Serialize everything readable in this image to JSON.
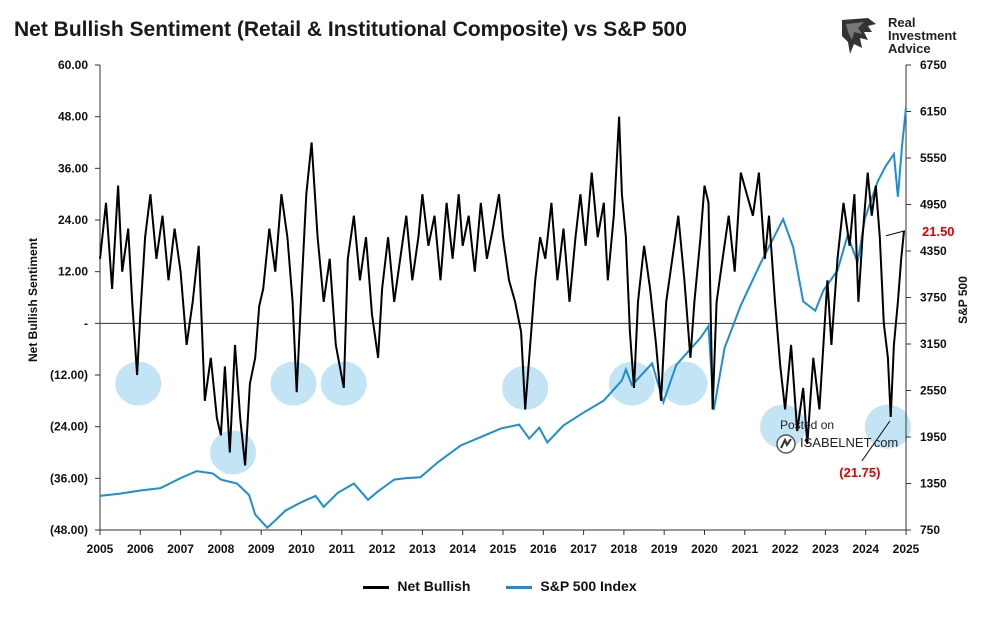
{
  "title": "Net Bullish Sentiment (Retail & Institutional Composite) vs S&P 500",
  "logo": {
    "line1": "Real",
    "line2": "Investment",
    "line3": "Advice"
  },
  "watermark": {
    "posted": "Posted on",
    "site": "ISABELNET.com"
  },
  "colors": {
    "net_bullish": "#000000",
    "sp500": "#1a8fd6",
    "highlight": "#b9dff3",
    "annotation": "#e00000"
  },
  "chart_data": {
    "type": "line",
    "title": "Net Bullish Sentiment (Retail & Institutional Composite) vs S&P 500",
    "x_ticks": [
      "2005",
      "2006",
      "2007",
      "2008",
      "2009",
      "2010",
      "2011",
      "2012",
      "2013",
      "2014",
      "2015",
      "2016",
      "2017",
      "2018",
      "2019",
      "2020",
      "2021",
      "2022",
      "2023",
      "2024",
      "2025"
    ],
    "xlim": [
      2005,
      2025
    ],
    "y_left": {
      "label": "Net Bullish Sentiment",
      "ticks": [
        "60.00",
        "48.00",
        "36.00",
        "24.00",
        "12.00",
        "-",
        "(12.00)",
        "(24.00)",
        "(36.00)",
        "(48.00)"
      ],
      "range": [
        -48,
        60
      ]
    },
    "y_right": {
      "label": "S&P 500",
      "ticks": [
        "6750",
        "6150",
        "5550",
        "4950",
        "4350",
        "3750",
        "3150",
        "2550",
        "1950",
        "1350",
        "750"
      ],
      "range": [
        750,
        6750
      ]
    },
    "series": [
      {
        "name": "Net Bullish",
        "axis": "left",
        "points": [
          [
            2005.0,
            15
          ],
          [
            2005.15,
            28
          ],
          [
            2005.3,
            8
          ],
          [
            2005.45,
            32
          ],
          [
            2005.55,
            12
          ],
          [
            2005.7,
            22
          ],
          [
            2005.8,
            5
          ],
          [
            2005.92,
            -12
          ],
          [
            2006.0,
            2
          ],
          [
            2006.12,
            20
          ],
          [
            2006.25,
            30
          ],
          [
            2006.4,
            15
          ],
          [
            2006.55,
            25
          ],
          [
            2006.7,
            10
          ],
          [
            2006.85,
            22
          ],
          [
            2007.0,
            12
          ],
          [
            2007.15,
            -5
          ],
          [
            2007.3,
            5
          ],
          [
            2007.45,
            18
          ],
          [
            2007.6,
            -18
          ],
          [
            2007.75,
            -8
          ],
          [
            2007.9,
            -22
          ],
          [
            2008.0,
            -26
          ],
          [
            2008.1,
            -10
          ],
          [
            2008.22,
            -30
          ],
          [
            2008.35,
            -5
          ],
          [
            2008.48,
            -22
          ],
          [
            2008.6,
            -33
          ],
          [
            2008.72,
            -14
          ],
          [
            2008.85,
            -8
          ],
          [
            2008.95,
            4
          ],
          [
            2009.05,
            8
          ],
          [
            2009.2,
            22
          ],
          [
            2009.35,
            12
          ],
          [
            2009.5,
            30
          ],
          [
            2009.65,
            20
          ],
          [
            2009.78,
            5
          ],
          [
            2009.88,
            -16
          ],
          [
            2010.0,
            8
          ],
          [
            2010.12,
            30
          ],
          [
            2010.25,
            42
          ],
          [
            2010.4,
            20
          ],
          [
            2010.55,
            5
          ],
          [
            2010.7,
            15
          ],
          [
            2010.85,
            -5
          ],
          [
            2010.95,
            -10
          ],
          [
            2011.05,
            -15
          ],
          [
            2011.15,
            15
          ],
          [
            2011.3,
            25
          ],
          [
            2011.45,
            10
          ],
          [
            2011.6,
            20
          ],
          [
            2011.75,
            2
          ],
          [
            2011.9,
            -8
          ],
          [
            2012.0,
            8
          ],
          [
            2012.15,
            20
          ],
          [
            2012.3,
            5
          ],
          [
            2012.45,
            15
          ],
          [
            2012.6,
            25
          ],
          [
            2012.75,
            10
          ],
          [
            2012.9,
            20
          ],
          [
            2013.0,
            30
          ],
          [
            2013.15,
            18
          ],
          [
            2013.3,
            25
          ],
          [
            2013.45,
            10
          ],
          [
            2013.6,
            28
          ],
          [
            2013.75,
            15
          ],
          [
            2013.9,
            30
          ],
          [
            2014.0,
            18
          ],
          [
            2014.15,
            25
          ],
          [
            2014.3,
            12
          ],
          [
            2014.45,
            28
          ],
          [
            2014.6,
            15
          ],
          [
            2014.75,
            22
          ],
          [
            2014.9,
            30
          ],
          [
            2015.0,
            20
          ],
          [
            2015.15,
            10
          ],
          [
            2015.3,
            5
          ],
          [
            2015.45,
            -2
          ],
          [
            2015.55,
            -20
          ],
          [
            2015.65,
            -8
          ],
          [
            2015.8,
            10
          ],
          [
            2015.92,
            20
          ],
          [
            2016.05,
            15
          ],
          [
            2016.2,
            28
          ],
          [
            2016.35,
            10
          ],
          [
            2016.5,
            22
          ],
          [
            2016.65,
            5
          ],
          [
            2016.8,
            20
          ],
          [
            2016.92,
            30
          ],
          [
            2017.05,
            18
          ],
          [
            2017.2,
            35
          ],
          [
            2017.35,
            20
          ],
          [
            2017.5,
            28
          ],
          [
            2017.6,
            10
          ],
          [
            2017.75,
            25
          ],
          [
            2017.88,
            48
          ],
          [
            2017.95,
            30
          ],
          [
            2018.05,
            20
          ],
          [
            2018.15,
            -2
          ],
          [
            2018.25,
            -15
          ],
          [
            2018.35,
            5
          ],
          [
            2018.5,
            18
          ],
          [
            2018.65,
            8
          ],
          [
            2018.8,
            -5
          ],
          [
            2018.92,
            -18
          ],
          [
            2019.05,
            5
          ],
          [
            2019.2,
            15
          ],
          [
            2019.35,
            25
          ],
          [
            2019.5,
            10
          ],
          [
            2019.65,
            -8
          ],
          [
            2019.75,
            5
          ],
          [
            2019.9,
            20
          ],
          [
            2020.0,
            32
          ],
          [
            2020.1,
            28
          ],
          [
            2020.2,
            -20
          ],
          [
            2020.3,
            5
          ],
          [
            2020.45,
            15
          ],
          [
            2020.6,
            25
          ],
          [
            2020.75,
            12
          ],
          [
            2020.9,
            35
          ],
          [
            2021.05,
            30
          ],
          [
            2021.2,
            25
          ],
          [
            2021.35,
            35
          ],
          [
            2021.5,
            15
          ],
          [
            2021.6,
            25
          ],
          [
            2021.75,
            5
          ],
          [
            2021.88,
            -10
          ],
          [
            2022.0,
            -20
          ],
          [
            2022.15,
            -5
          ],
          [
            2022.3,
            -25
          ],
          [
            2022.45,
            -15
          ],
          [
            2022.55,
            -28
          ],
          [
            2022.7,
            -8
          ],
          [
            2022.85,
            -20
          ],
          [
            2022.95,
            -5
          ],
          [
            2023.05,
            10
          ],
          [
            2023.15,
            -5
          ],
          [
            2023.3,
            15
          ],
          [
            2023.45,
            28
          ],
          [
            2023.6,
            18
          ],
          [
            2023.72,
            30
          ],
          [
            2023.82,
            5
          ],
          [
            2023.92,
            20
          ],
          [
            2024.05,
            35
          ],
          [
            2024.15,
            25
          ],
          [
            2024.25,
            32
          ],
          [
            2024.35,
            20
          ],
          [
            2024.45,
            0
          ],
          [
            2024.55,
            -8
          ],
          [
            2024.62,
            -21.75
          ],
          [
            2024.7,
            -5
          ],
          [
            2024.8,
            5
          ],
          [
            2024.88,
            15
          ],
          [
            2024.95,
            21.5
          ]
        ]
      },
      {
        "name": "S&P 500 Index",
        "axis": "right",
        "points": [
          [
            2005.0,
            1190
          ],
          [
            2005.5,
            1220
          ],
          [
            2006.0,
            1260
          ],
          [
            2006.5,
            1290
          ],
          [
            2007.0,
            1420
          ],
          [
            2007.4,
            1510
          ],
          [
            2007.8,
            1480
          ],
          [
            2008.0,
            1400
          ],
          [
            2008.4,
            1350
          ],
          [
            2008.7,
            1200
          ],
          [
            2008.85,
            950
          ],
          [
            2009.15,
            780
          ],
          [
            2009.3,
            850
          ],
          [
            2009.6,
            1000
          ],
          [
            2010.0,
            1110
          ],
          [
            2010.35,
            1190
          ],
          [
            2010.55,
            1050
          ],
          [
            2010.9,
            1230
          ],
          [
            2011.3,
            1350
          ],
          [
            2011.65,
            1140
          ],
          [
            2011.9,
            1250
          ],
          [
            2012.3,
            1400
          ],
          [
            2012.6,
            1420
          ],
          [
            2012.95,
            1430
          ],
          [
            2013.4,
            1630
          ],
          [
            2013.95,
            1840
          ],
          [
            2014.5,
            1960
          ],
          [
            2014.95,
            2060
          ],
          [
            2015.4,
            2110
          ],
          [
            2015.65,
            1930
          ],
          [
            2015.9,
            2070
          ],
          [
            2016.1,
            1880
          ],
          [
            2016.5,
            2100
          ],
          [
            2016.95,
            2250
          ],
          [
            2017.5,
            2420
          ],
          [
            2017.95,
            2680
          ],
          [
            2018.05,
            2820
          ],
          [
            2018.2,
            2620
          ],
          [
            2018.7,
            2900
          ],
          [
            2018.98,
            2400
          ],
          [
            2019.3,
            2880
          ],
          [
            2019.9,
            3230
          ],
          [
            2020.1,
            3380
          ],
          [
            2020.23,
            2300
          ],
          [
            2020.5,
            3100
          ],
          [
            2020.9,
            3650
          ],
          [
            2021.4,
            4200
          ],
          [
            2021.95,
            4760
          ],
          [
            2022.2,
            4400
          ],
          [
            2022.45,
            3700
          ],
          [
            2022.75,
            3580
          ],
          [
            2022.95,
            3840
          ],
          [
            2023.3,
            4100
          ],
          [
            2023.55,
            4550
          ],
          [
            2023.8,
            4200
          ],
          [
            2023.98,
            4770
          ],
          [
            2024.3,
            5250
          ],
          [
            2024.5,
            5450
          ],
          [
            2024.7,
            5600
          ],
          [
            2024.8,
            5050
          ],
          [
            2024.9,
            5700
          ],
          [
            2025.0,
            6200
          ]
        ]
      }
    ],
    "highlights": [
      {
        "x": 2005.95,
        "y": -14
      },
      {
        "x": 2008.3,
        "y": -30
      },
      {
        "x": 2009.8,
        "y": -14
      },
      {
        "x": 2011.05,
        "y": -14
      },
      {
        "x": 2015.55,
        "y": -15
      },
      {
        "x": 2018.2,
        "y": -14
      },
      {
        "x": 2019.5,
        "y": -14
      },
      {
        "x": 2021.95,
        "y": -24
      },
      {
        "x": 2024.55,
        "y": -24
      }
    ],
    "annotations": [
      {
        "text": "21.50",
        "x": 2025.0,
        "y": 21.5
      },
      {
        "text": "(21.75)",
        "x": 2024.6,
        "y": -21.75
      }
    ],
    "legend": [
      "Net Bullish",
      "S&P 500 Index"
    ],
    "legend_position": "bottom",
    "zero_line": true
  }
}
